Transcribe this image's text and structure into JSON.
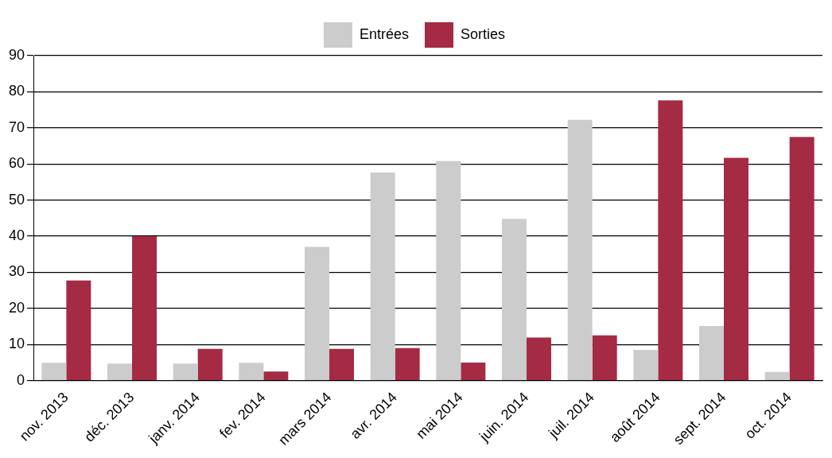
{
  "chart_data": {
    "type": "bar",
    "categories": [
      "nov. 2013",
      "déc. 2013",
      "janv. 2014",
      "fev. 2014",
      "mars 2014",
      "avr. 2014",
      "mai 2014",
      "juin. 2014",
      "juil. 2014",
      "août 2014",
      "sept. 2014",
      "oct. 2014"
    ],
    "series": [
      {
        "name": "Entrées",
        "color": "#cccccc",
        "values": [
          4.9,
          4.7,
          4.7,
          4.9,
          37,
          57.6,
          60.8,
          44.8,
          72.2,
          8.5,
          15.1,
          2.4
        ]
      },
      {
        "name": "Sorties",
        "color": "#a52a44",
        "values": [
          27.7,
          40,
          8.8,
          2.5,
          8.8,
          9,
          5,
          11.9,
          12.5,
          77.6,
          61.7,
          67.5
        ]
      }
    ],
    "ylim": [
      0,
      90
    ],
    "yticks": [
      0,
      10,
      20,
      30,
      40,
      50,
      60,
      70,
      80,
      90
    ],
    "grid": "y",
    "legend": "top"
  }
}
